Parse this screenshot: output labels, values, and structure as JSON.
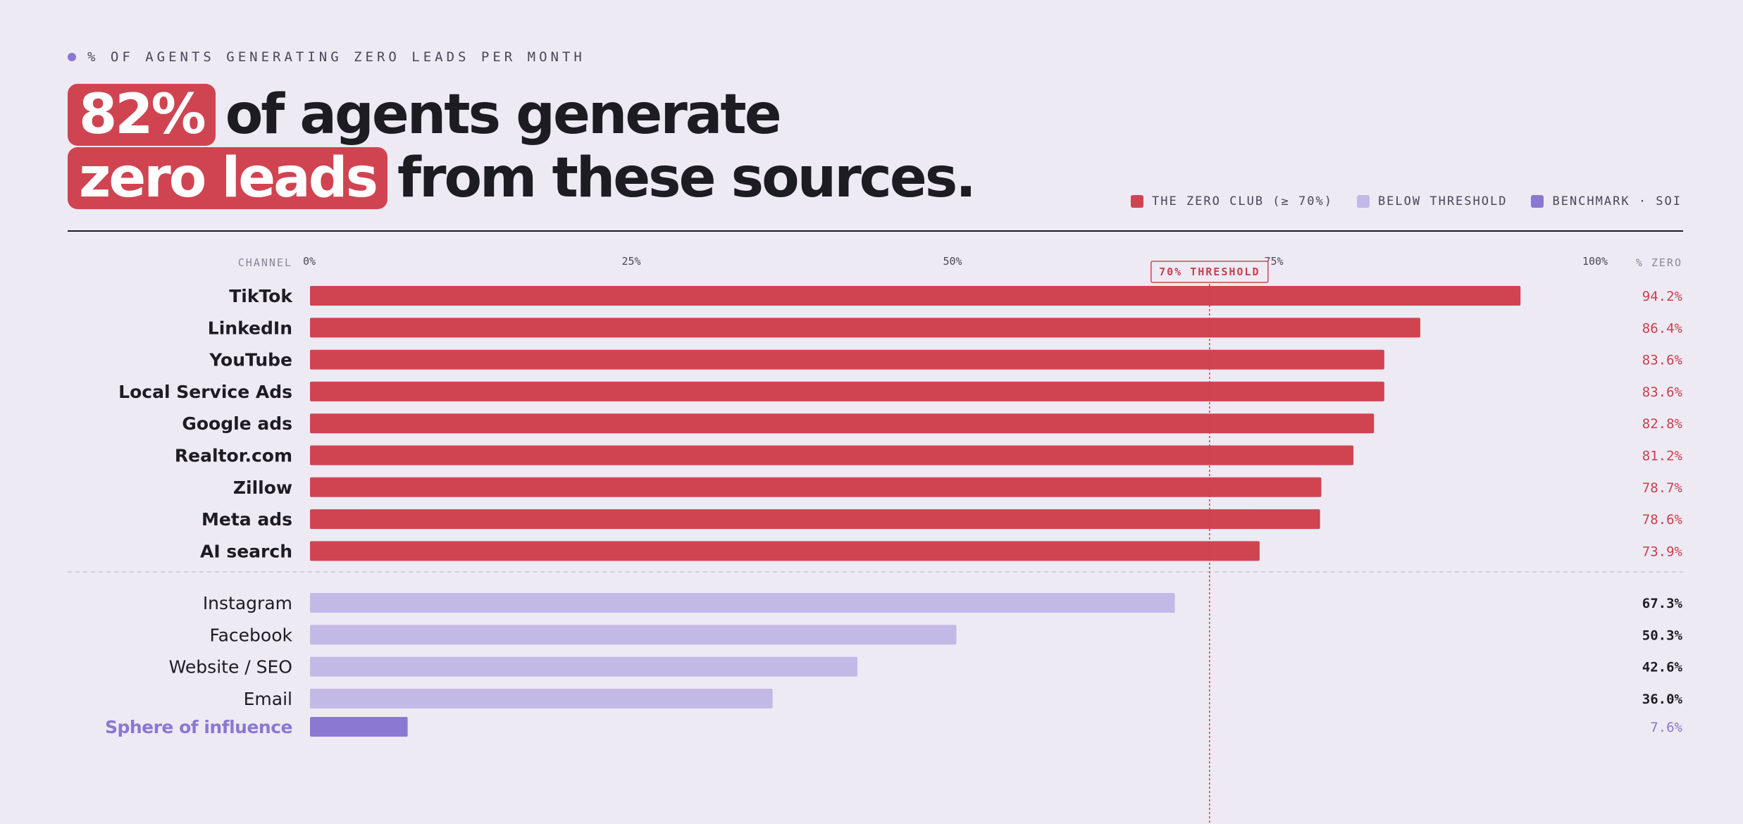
{
  "eyebrow": "% OF AGENTS GENERATING ZERO LEADS PER MONTH",
  "headline": {
    "pill1": "82%",
    "rest1": "of agents generate",
    "pill2": "zero leads",
    "rest2": "from these sources."
  },
  "legend": [
    {
      "label": "THE ZERO CLUB (≥ 70%)",
      "color": "#d04451"
    },
    {
      "label": "BELOW THRESHOLD",
      "color": "#c3b9e6"
    },
    {
      "label": "BENCHMARK · SOI",
      "color": "#8b78d2"
    }
  ],
  "colors": {
    "zero_club": "#d04451",
    "below": "#c3b9e6",
    "benchmark": "#8b78d2",
    "ink": "#1d1c22",
    "muted": "#7a7686"
  },
  "chart_data": {
    "type": "bar",
    "orientation": "horizontal",
    "xlim": [
      0,
      100
    ],
    "x_ticks": [
      "0%",
      "25%",
      "50%",
      "75%",
      "100%"
    ],
    "x_tick_values": [
      0,
      25,
      50,
      75,
      100
    ],
    "category_header": "CHANNEL",
    "value_header": "% ZERO",
    "threshold": {
      "value": 70,
      "label": "70% THRESHOLD"
    },
    "groups": [
      {
        "name": "THE ZERO CLUB (≥ 70%)",
        "color": "#d04451",
        "rows": [
          {
            "category": "TikTok",
            "value": 94.2,
            "label": "94.2%"
          },
          {
            "category": "LinkedIn",
            "value": 86.4,
            "label": "86.4%"
          },
          {
            "category": "YouTube",
            "value": 83.6,
            "label": "83.6%"
          },
          {
            "category": "Local Service Ads",
            "value": 83.6,
            "label": "83.6%"
          },
          {
            "category": "Google ads",
            "value": 82.8,
            "label": "82.8%"
          },
          {
            "category": "Realtor.com",
            "value": 81.2,
            "label": "81.2%"
          },
          {
            "category": "Zillow",
            "value": 78.7,
            "label": "78.7%"
          },
          {
            "category": "Meta ads",
            "value": 78.6,
            "label": "78.6%"
          },
          {
            "category": "AI search",
            "value": 73.9,
            "label": "73.9%"
          }
        ]
      },
      {
        "name": "BELOW THRESHOLD",
        "color": "#c3b9e6",
        "rows": [
          {
            "category": "Instagram",
            "value": 67.3,
            "label": "67.3%"
          },
          {
            "category": "Facebook",
            "value": 50.3,
            "label": "50.3%"
          },
          {
            "category": "Website / SEO",
            "value": 42.6,
            "label": "42.6%"
          },
          {
            "category": "Email",
            "value": 36.0,
            "label": "36.0%"
          }
        ]
      },
      {
        "name": "BENCHMARK · SOI",
        "color": "#8b78d2",
        "rows": [
          {
            "category": "Sphere of influence",
            "value": 7.6,
            "label": "7.6%"
          }
        ]
      }
    ]
  }
}
